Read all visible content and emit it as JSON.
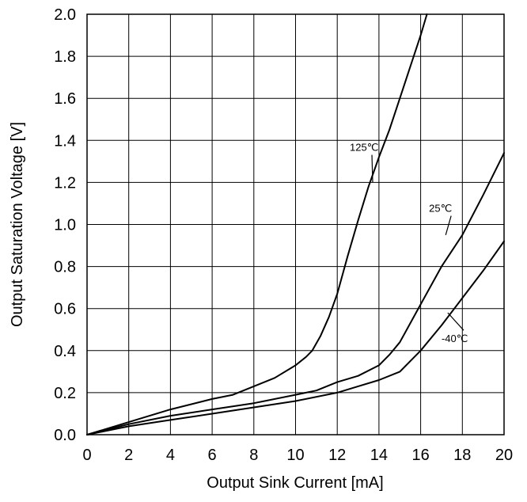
{
  "chart_data": {
    "type": "line",
    "title": "",
    "xlabel": "Output Sink Current [mA]",
    "ylabel": "Output Saturation Voltage [V]",
    "xlim": [
      0,
      20
    ],
    "ylim": [
      0,
      2.0
    ],
    "grid": true,
    "x_ticks": [
      "0",
      "2",
      "4",
      "6",
      "8",
      "10",
      "12",
      "14",
      "16",
      "18",
      "20"
    ],
    "y_ticks": [
      "0.0",
      "0.2",
      "0.4",
      "0.6",
      "0.8",
      "1.0",
      "1.2",
      "1.4",
      "1.6",
      "1.8",
      "2.0"
    ],
    "colors": {
      "line": "#000000",
      "grid": "#000000",
      "background": "#ffffff"
    },
    "series": [
      {
        "name": "125℃",
        "x": [
          0,
          2,
          4,
          6,
          7,
          8,
          9,
          10,
          10.5,
          10.8,
          11.2,
          11.6,
          12,
          12.5,
          13,
          13.5,
          14,
          14.5,
          15,
          15.5,
          16,
          16.3
        ],
        "y": [
          0,
          0.06,
          0.12,
          0.17,
          0.19,
          0.23,
          0.27,
          0.33,
          0.37,
          0.4,
          0.47,
          0.56,
          0.67,
          0.85,
          1.02,
          1.18,
          1.32,
          1.45,
          1.6,
          1.75,
          1.9,
          2.0
        ]
      },
      {
        "name": "25℃",
        "x": [
          0,
          2,
          4,
          6,
          8,
          10,
          11,
          12,
          13,
          14,
          14.5,
          15,
          16,
          17,
          18,
          19,
          20
        ],
        "y": [
          0,
          0.05,
          0.09,
          0.12,
          0.15,
          0.19,
          0.21,
          0.25,
          0.28,
          0.33,
          0.38,
          0.44,
          0.62,
          0.8,
          0.95,
          1.14,
          1.34
        ]
      },
      {
        "name": "-40℃",
        "x": [
          0,
          2,
          4,
          6,
          8,
          10,
          12,
          13,
          14,
          15,
          16,
          17,
          18,
          19,
          20
        ],
        "y": [
          0,
          0.04,
          0.07,
          0.1,
          0.13,
          0.16,
          0.2,
          0.23,
          0.26,
          0.3,
          0.4,
          0.52,
          0.65,
          0.78,
          0.92
        ]
      }
    ],
    "annotations": [
      {
        "series": "125℃",
        "text": "125℃",
        "label_at": [
          12.6,
          1.35
        ],
        "point_at": [
          13.7,
          1.2
        ]
      },
      {
        "series": "25℃",
        "text": "25℃",
        "label_at": [
          16.4,
          1.06
        ],
        "point_at": [
          17.2,
          0.95
        ]
      },
      {
        "series": "-40℃",
        "text": "-40℃",
        "label_at": [
          17.0,
          0.44
        ],
        "point_at": [
          17.3,
          0.58
        ]
      }
    ]
  }
}
